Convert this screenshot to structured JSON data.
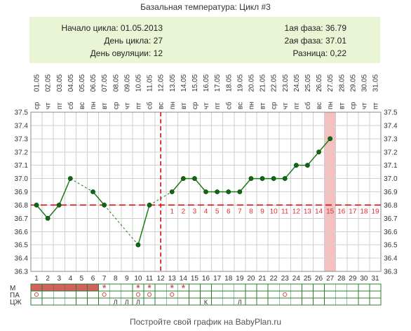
{
  "chart_data": {
    "type": "line",
    "title": "Базальная температура: Цикл #3",
    "summary": {
      "cycle_start": "Начало цикла: 01.05.2013",
      "cycle_day": "День цикла: 27",
      "ovulation_day": "День овуляции: 12",
      "phase1": "1ая фаза: 36.79",
      "phase2": "2ая фаза: 37.01",
      "difference": "Разница: 0,22"
    },
    "x_days": [
      1,
      2,
      3,
      4,
      5,
      6,
      7,
      8,
      9,
      10,
      11,
      12,
      13,
      14,
      15,
      16,
      17,
      18,
      19,
      20,
      21,
      22,
      23,
      24,
      25,
      26,
      27,
      28,
      29,
      30,
      31
    ],
    "weekdays": [
      "ср",
      "чт",
      "пт",
      "сб",
      "вс",
      "пн",
      "вт",
      "ср",
      "чт",
      "пт",
      "сб",
      "вс",
      "пн",
      "вт",
      "ср",
      "чт",
      "пт",
      "сб",
      "вс",
      "пн",
      "вт",
      "ср",
      "чт",
      "пт",
      "сб",
      "вс",
      "пн",
      "вт",
      "ср",
      "чт",
      "пт"
    ],
    "dates": [
      "01.05",
      "02.05",
      "03.05",
      "04.05",
      "05.05",
      "06.05",
      "07.05",
      "08.05",
      "09.05",
      "10.05",
      "11.05",
      "12.05",
      "13.05",
      "14.05",
      "15.05",
      "16.05",
      "17.05",
      "18.05",
      "19.05",
      "20.05",
      "21.05",
      "22.05",
      "23.05",
      "24.05",
      "25.05",
      "26.05",
      "27.05",
      "28.05",
      "29.05",
      "30.05",
      "31.05"
    ],
    "y_ticks": [
      "37.5",
      "37.4",
      "37.3",
      "37.2",
      "37.1",
      "37.0",
      "36.9",
      "36.8",
      "36.7",
      "36.6",
      "36.5",
      "36.4",
      "36.3"
    ],
    "ylim": [
      36.3,
      37.5
    ],
    "temperatures": [
      36.8,
      36.7,
      36.8,
      37.0,
      null,
      36.9,
      36.8,
      null,
      null,
      36.5,
      36.8,
      null,
      36.9,
      37.0,
      37.0,
      36.9,
      36.9,
      36.9,
      36.9,
      37.0,
      37.0,
      37.0,
      37.0,
      37.1,
      37.1,
      37.2,
      37.3,
      null,
      null,
      null,
      null
    ],
    "solid_segments": [
      [
        1,
        4
      ],
      [
        6,
        7
      ],
      [
        10,
        11
      ],
      [
        13,
        27
      ]
    ],
    "dashed_segments": [
      [
        4,
        6
      ],
      [
        7,
        10
      ],
      [
        11,
        13
      ]
    ],
    "coverline": 36.8,
    "ovulation_day": 12,
    "current_day": 27,
    "luteal_labels": [
      "1",
      "2",
      "3",
      "4",
      "5",
      "6",
      "7",
      "8",
      "9",
      "10",
      "11",
      "12",
      "13",
      "14",
      "15",
      "16",
      "17",
      "18",
      "19"
    ],
    "luteal_start_day": 13,
    "rows": [
      {
        "label": "М",
        "cells": {
          "1": "bar",
          "2": "bar",
          "3": "bar",
          "4": "bar",
          "5": "bar",
          "6": "bar",
          "7": "*",
          "10": "*",
          "11": "*",
          "13": "*",
          "14": "*"
        }
      },
      {
        "label": "ПА",
        "cells": {
          "1": "o",
          "7": "o",
          "10": "o",
          "11": "o",
          "13": "o",
          "23": "o"
        }
      },
      {
        "label": "ЦЖ",
        "cells": {
          "8": "Л",
          "9": "Л",
          "10": "Л",
          "16": "К",
          "19": "Л"
        }
      }
    ],
    "colors": {
      "line": "#1e7a1e",
      "marker": "#0f6a0f",
      "marker_before_ovulation": "#e08a00",
      "coverline": "#d40000",
      "ovulation": "#d40000",
      "highlight": "#f4c0c0",
      "menstruation": "#d46060",
      "luteal_text": "#e03030"
    },
    "grid": true
  },
  "footer": "Постройте свой график на BabyPlan.ru"
}
